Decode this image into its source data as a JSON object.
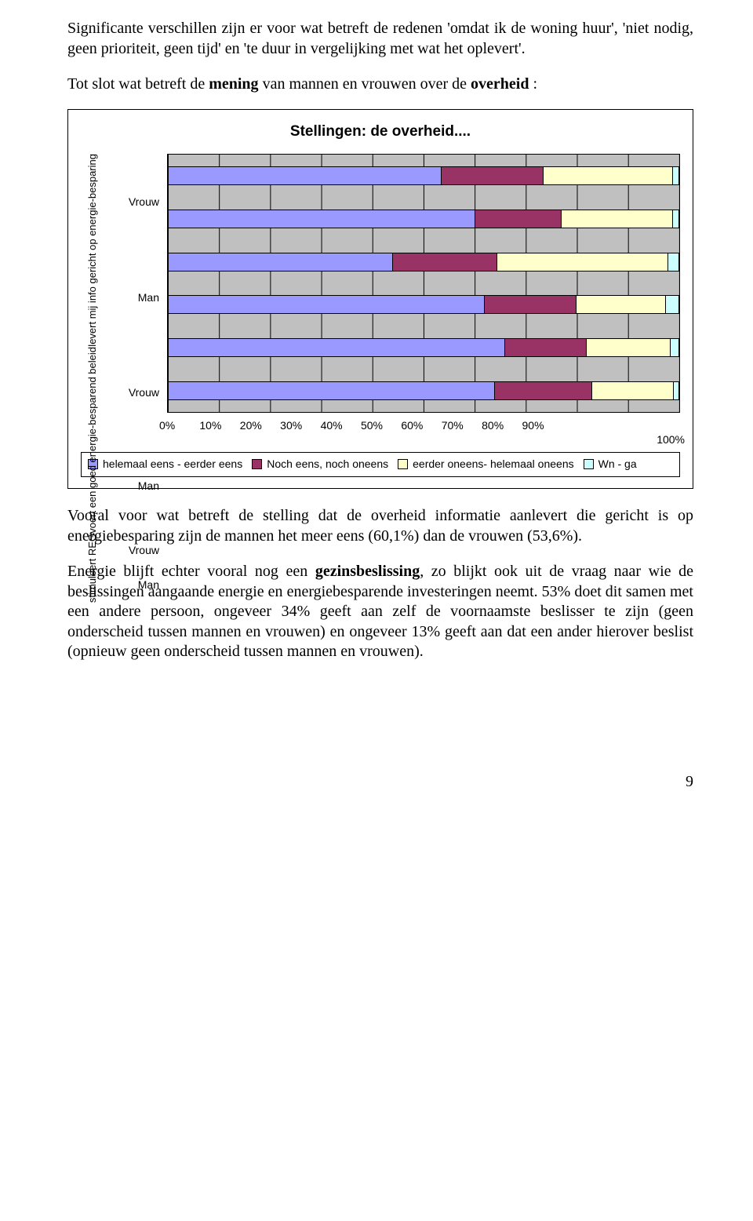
{
  "para1": "Significante verschillen zijn er voor wat betreft de redenen 'omdat ik de woning huur', 'niet nodig, geen prioriteit, geen tijd' en 'te duur in vergelijking met wat het oplevert'.",
  "para2_pre": "Tot slot wat betreft de ",
  "para2_bold1": "mening",
  "para2_mid": " van mannen en vrouwen over de ",
  "para2_bold2": "overheid",
  "para2_post": " :",
  "chart": {
    "title": "Stellingen: de overheid....",
    "background_color": "#c0c0c0",
    "grid_color": "#000000",
    "xticks": [
      "0%",
      "10%",
      "20%",
      "30%",
      "40%",
      "50%",
      "60%",
      "70%",
      "80%",
      "90%",
      "100%"
    ],
    "series_colors": {
      "helemaal_eerder_eens": "#9999ff",
      "noch": "#993366",
      "eerder_helemaal_oneens": "#ffffcc",
      "wn_ga": "#ccffff"
    },
    "legend": [
      {
        "key": "helemaal_eerder_eens",
        "label": "helemaal eens - eerder eens"
      },
      {
        "key": "noch",
        "label": "Noch eens, noch oneens"
      },
      {
        "key": "eerder_helemaal_oneens",
        "label": "eerder oneens- helemaal oneens"
      },
      {
        "key": "wn_ga",
        "label": "Wn - ga"
      }
    ],
    "groups": [
      {
        "label": "levert mij info gericht op energie-besparing",
        "rows": [
          {
            "sublabel": "Vrouw",
            "values": [
              53.6,
              20.0,
              25.4,
              1.0
            ]
          },
          {
            "sublabel": "Man",
            "values": [
              60.1,
              17.0,
              21.9,
              1.0
            ]
          }
        ]
      },
      {
        "label": "voert een goed energie-besparend beleid",
        "rows": [
          {
            "sublabel": "Vrouw",
            "values": [
              44.0,
              20.5,
              33.5,
              2.0
            ]
          },
          {
            "sublabel": "Man",
            "values": [
              62.0,
              18.0,
              17.5,
              2.5
            ]
          }
        ]
      },
      {
        "label": "stimuleert REG",
        "rows": [
          {
            "sublabel": "Vrouw",
            "values": [
              66.0,
              16.0,
              16.5,
              1.5
            ]
          },
          {
            "sublabel": "Man",
            "values": [
              64.0,
              19.0,
              16.0,
              1.0
            ]
          }
        ]
      }
    ]
  },
  "para3": "Vooral voor wat betreft de stelling dat de overheid informatie aanlevert die gericht is op energiebesparing zijn de mannen het meer eens (60,1%) dan de vrouwen (53,6%).",
  "para4_pre": "Energie blijft echter vooral nog een ",
  "para4_bold": "gezinsbeslissing",
  "para4_post": ", zo blijkt ook uit de vraag naar wie de beslissingen aangaande energie en energiebesparende investeringen neemt. 53% doet dit samen met een andere persoon, ongeveer 34% geeft aan zelf de voornaamste beslisser te zijn (geen onderscheid tussen mannen en vrouwen) en ongeveer 13% geeft aan dat een ander hierover beslist (opnieuw geen onderscheid tussen mannen en vrouwen).",
  "page_number": "9"
}
